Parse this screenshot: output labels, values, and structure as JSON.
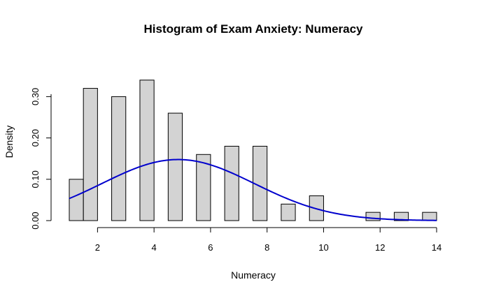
{
  "chart_data": {
    "type": "bar",
    "title": "Histogram of Exam Anxiety: Numeracy",
    "xlabel": "Numeracy",
    "ylabel": "Density",
    "xlim": [
      1,
      14
    ],
    "ylim": [
      0,
      0.34
    ],
    "x_ticks": [
      2,
      4,
      6,
      8,
      10,
      12,
      14
    ],
    "y_ticks": [
      0.0,
      0.1,
      0.2,
      0.3
    ],
    "y_tick_labels": [
      "0.00",
      "0.10",
      "0.20",
      "0.30"
    ],
    "bins": [
      {
        "start": 1.0,
        "end": 1.5,
        "value": 0.1
      },
      {
        "start": 1.5,
        "end": 2.0,
        "value": 0.32
      },
      {
        "start": 2.5,
        "end": 3.0,
        "value": 0.3
      },
      {
        "start": 3.5,
        "end": 4.0,
        "value": 0.34
      },
      {
        "start": 4.5,
        "end": 5.0,
        "value": 0.26
      },
      {
        "start": 5.5,
        "end": 6.0,
        "value": 0.16
      },
      {
        "start": 6.5,
        "end": 7.0,
        "value": 0.18
      },
      {
        "start": 7.5,
        "end": 8.0,
        "value": 0.18
      },
      {
        "start": 8.5,
        "end": 9.0,
        "value": 0.04
      },
      {
        "start": 9.5,
        "end": 10.0,
        "value": 0.06
      },
      {
        "start": 11.5,
        "end": 12.0,
        "value": 0.02
      },
      {
        "start": 12.5,
        "end": 13.0,
        "value": 0.02
      },
      {
        "start": 13.5,
        "end": 14.0,
        "value": 0.02
      }
    ],
    "density_curve": {
      "type": "normal",
      "mean": 4.85,
      "sd": 2.7,
      "x_range": [
        1,
        14
      ],
      "color": "#0000cd"
    },
    "bar_fill": "#d3d3d3",
    "bar_stroke": "#000000",
    "grid": false,
    "legend": "none"
  }
}
